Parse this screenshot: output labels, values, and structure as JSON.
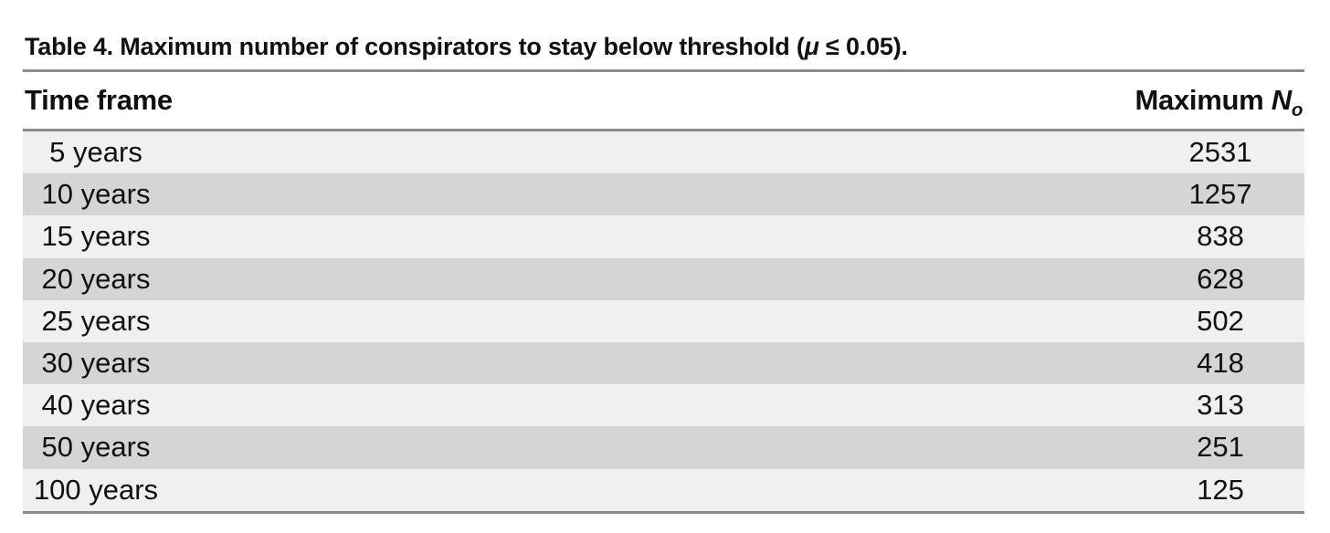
{
  "title": {
    "lead": "Table 4. Maximum number of conspirators to stay below threshold (",
    "mu": "μ",
    "tail": " ≤ 0.05)."
  },
  "columns": {
    "time_frame": "Time frame",
    "max_prefix": "Maximum ",
    "max_var": "N",
    "max_sub": "o"
  },
  "rows": [
    {
      "label": "5 years",
      "value": "2531"
    },
    {
      "label": "10 years",
      "value": "1257"
    },
    {
      "label": "15 years",
      "value": "838"
    },
    {
      "label": "20 years",
      "value": "628"
    },
    {
      "label": "25 years",
      "value": "502"
    },
    {
      "label": "30 years",
      "value": "418"
    },
    {
      "label": "40 years",
      "value": "313"
    },
    {
      "label": "50 years",
      "value": "251"
    },
    {
      "label": "100 years",
      "value": "125"
    }
  ],
  "colors": {
    "row_light": "#f0f0ee",
    "row_dark": "#d5d5d3",
    "rule": "#8b8b8b",
    "text": "#111111",
    "background": "#ffffff"
  }
}
